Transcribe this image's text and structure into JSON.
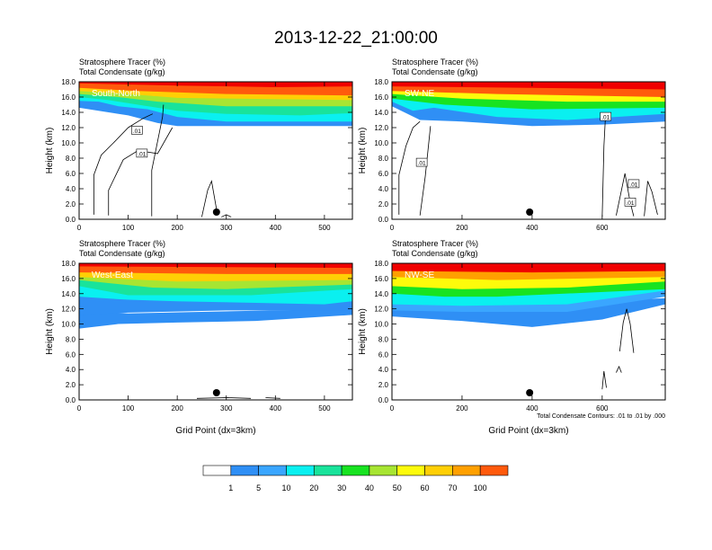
{
  "title": "2013-12-22_21:00:00",
  "colors": {
    "levels": [
      "#ffffff",
      "#2f8ff5",
      "#3aa6ff",
      "#0af0f0",
      "#19e39b",
      "#18e321",
      "#a7e532",
      "#fdfb0b",
      "#ffcf05",
      "#ffa000",
      "#ff5a0c",
      "#f00000"
    ],
    "bg": "#ffffff",
    "contour": "#000000"
  },
  "colorbar": {
    "labels": [
      "1",
      "5",
      "10",
      "20",
      "30",
      "40",
      "50",
      "60",
      "70",
      "100"
    ]
  },
  "chart_data": [
    {
      "type": "heatmap",
      "panel": "top-left",
      "section_label": "South-North",
      "left_title_1": "Stratosphere Tracer   (%)",
      "left_title_2": "Total Condensate   (g/kg)",
      "ylabel": "Height (km)",
      "xlabel": "",
      "footnote": "",
      "xlim": [
        0,
        557
      ],
      "ylim": [
        0,
        18
      ],
      "xticks": [
        0,
        100,
        200,
        300,
        400,
        500
      ],
      "yticks": [
        "0.0",
        "2.0",
        "4.0",
        "6.0",
        "8.0",
        "10.0",
        "12.0",
        "14.0",
        "16.0",
        "18.0"
      ],
      "marker_x": 280,
      "contour_labels": [
        ".01",
        ".01"
      ]
    },
    {
      "type": "heatmap",
      "panel": "top-right",
      "section_label": "SW-NE",
      "left_title_1": "Stratosphere Tracer   (%)",
      "left_title_2": "Total Condensate   (g/kg)",
      "ylabel": "Height (km)",
      "xlabel": "",
      "footnote": "",
      "xlim": [
        0,
        780
      ],
      "ylim": [
        0,
        18
      ],
      "xticks": [
        0,
        200,
        400,
        600
      ],
      "yticks": [
        "0.0",
        "2.0",
        "4.0",
        "6.0",
        "8.0",
        "10.0",
        "12.0",
        "14.0",
        "16.0",
        "18.0"
      ],
      "marker_x": 393,
      "contour_labels": [
        ".01",
        ".01",
        ".01",
        ".01"
      ]
    },
    {
      "type": "heatmap",
      "panel": "bottom-left",
      "section_label": "West-East",
      "left_title_1": "Stratosphere Tracer   (%)",
      "left_title_2": "Total Condensate   (g/kg)",
      "ylabel": "Height (km)",
      "xlabel": "Grid Point (dx=3km)",
      "footnote": "",
      "xlim": [
        0,
        557
      ],
      "ylim": [
        0,
        18
      ],
      "xticks": [
        0,
        100,
        200,
        300,
        400,
        500
      ],
      "yticks": [
        "0.0",
        "2.0",
        "4.0",
        "6.0",
        "8.0",
        "10.0",
        "12.0",
        "14.0",
        "16.0",
        "18.0"
      ],
      "marker_x": 280,
      "contour_labels": []
    },
    {
      "type": "heatmap",
      "panel": "bottom-right",
      "section_label": "NW-SE",
      "left_title_1": "Stratosphere Tracer   (%)",
      "left_title_2": "Total Condensate   (g/kg)",
      "ylabel": "Height (km)",
      "xlabel": "Grid Point (dx=3km)",
      "footnote": "Total Condensate Contours: .01 to .01 by .000",
      "xlim": [
        0,
        780
      ],
      "ylim": [
        0,
        18
      ],
      "xticks": [
        0,
        200,
        400,
        600
      ],
      "yticks": [
        "0.0",
        "2.0",
        "4.0",
        "6.0",
        "8.0",
        "10.0",
        "12.0",
        "14.0",
        "16.0",
        "18.0"
      ],
      "marker_x": 393,
      "contour_labels": []
    }
  ]
}
